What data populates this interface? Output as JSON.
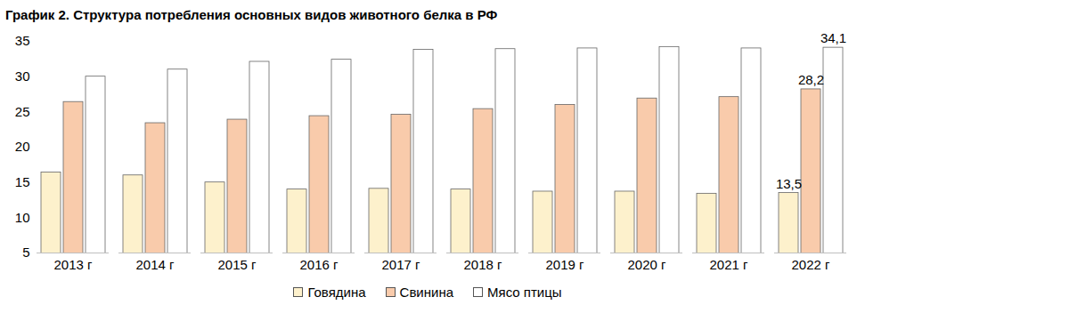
{
  "chart_data": {
    "type": "bar",
    "title": "График 2. Структура потребления основных видов животного белка в РФ",
    "categories": [
      "2013 г",
      "2014 г",
      "2015 г",
      "2016 г",
      "2017 г",
      "2018 г",
      "2019 г",
      "2020 г",
      "2021 г",
      "2022 г"
    ],
    "series": [
      {
        "name": "Говядина",
        "color": "#fdf1cc",
        "values": [
          16.4,
          16.0,
          15.0,
          14.0,
          14.1,
          14.0,
          13.7,
          13.7,
          13.4,
          13.5
        ],
        "value_labels": [
          null,
          null,
          null,
          null,
          null,
          null,
          null,
          null,
          null,
          "13,5"
        ]
      },
      {
        "name": "Свинина",
        "color": "#f9cbab",
        "values": [
          26.4,
          23.4,
          23.9,
          24.4,
          24.6,
          25.4,
          26.0,
          26.9,
          27.1,
          28.2
        ],
        "value_labels": [
          null,
          null,
          null,
          null,
          null,
          null,
          null,
          null,
          null,
          "28,2"
        ]
      },
      {
        "name": "Мясо птицы",
        "color": "#ffffff",
        "values": [
          30.0,
          31.0,
          32.1,
          32.4,
          33.8,
          33.9,
          34.0,
          34.2,
          34.0,
          34.1
        ],
        "value_labels": [
          null,
          null,
          null,
          null,
          null,
          null,
          null,
          null,
          null,
          "34,1"
        ]
      }
    ],
    "ylim": [
      5,
      35
    ],
    "yticks": [
      5,
      10,
      15,
      20,
      25,
      30,
      35
    ],
    "grid": false,
    "data_labels": true,
    "legend": "bottom"
  }
}
